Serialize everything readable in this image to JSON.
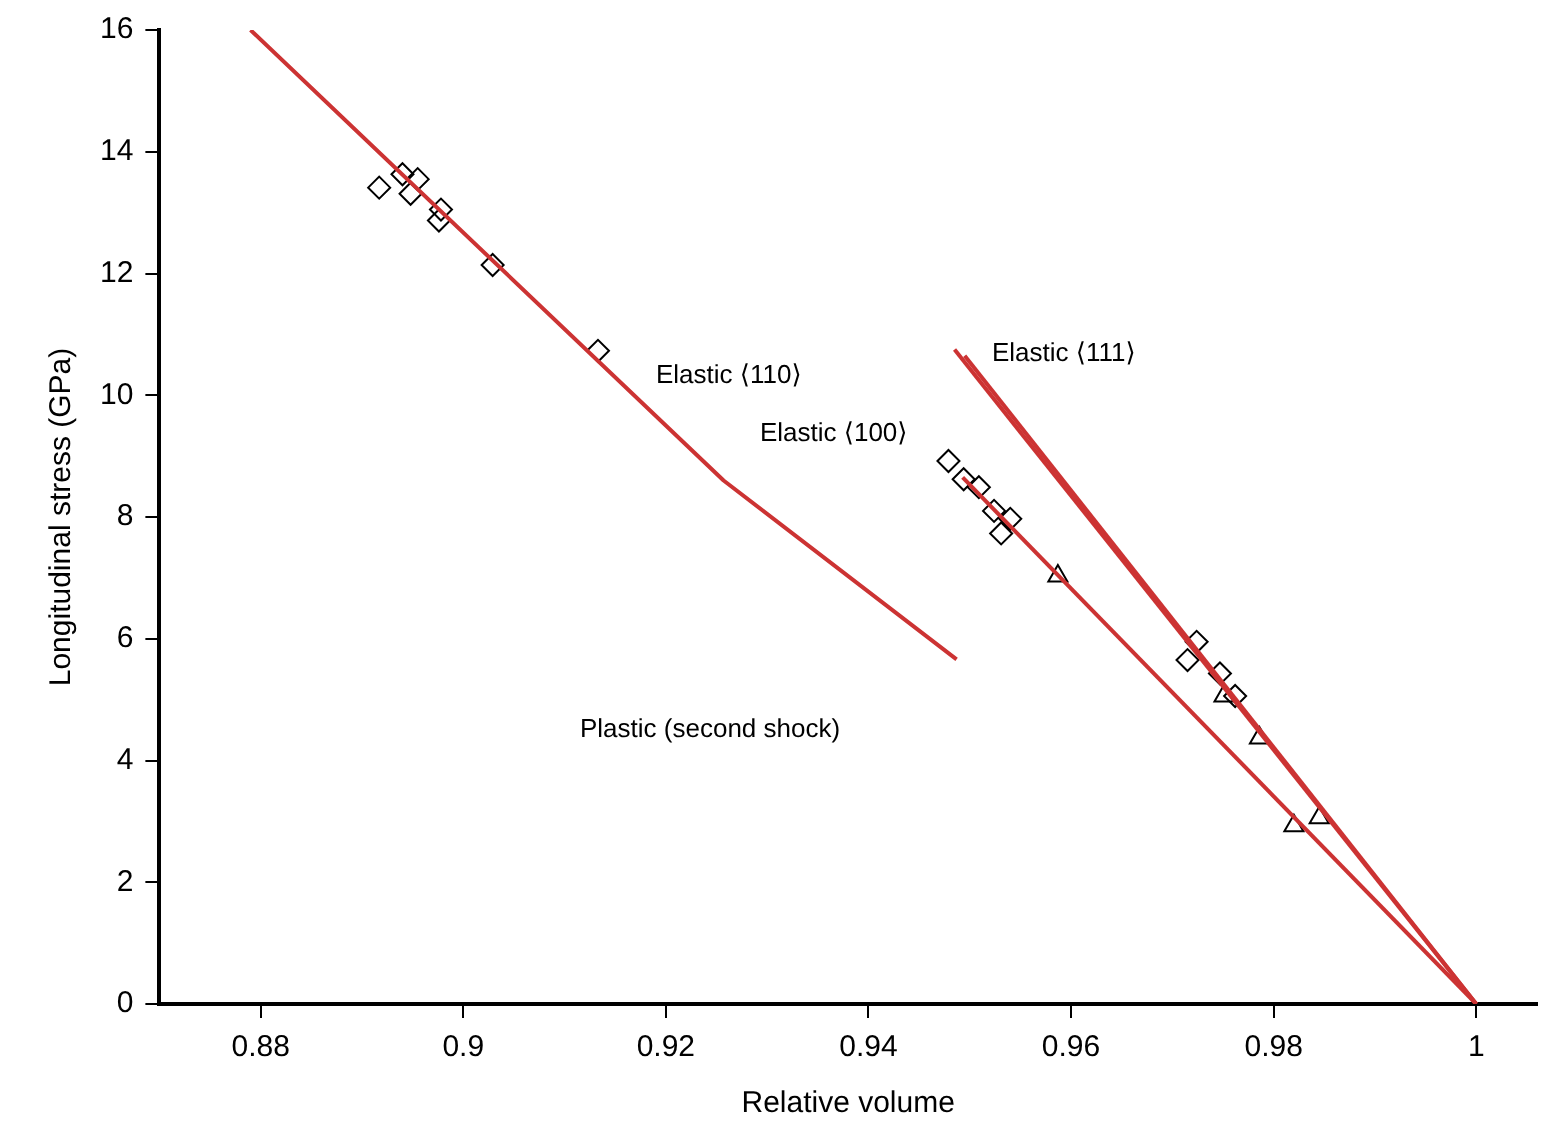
{
  "chart_data": {
    "type": "line",
    "xlabel": "Relative volume",
    "ylabel": "Longitudinal stress (GPa)",
    "xlim": [
      0.87,
      1.006
    ],
    "xticks": [
      0.88,
      0.9,
      0.92,
      0.94,
      0.96,
      0.98,
      1
    ],
    "ylim": [
      0,
      16
    ],
    "yticks": [
      0,
      2,
      4,
      6,
      8,
      10,
      12,
      14,
      16
    ],
    "grid": false,
    "legend": false,
    "line_style": "solid",
    "series": [
      {
        "color": "#cc3333",
        "marker": "none",
        "x": [
          0.879,
          0.9257,
          0.9487
        ],
        "values": [
          16,
          8.6,
          5.66
        ]
      },
      {
        "color": "#cc3333",
        "marker": "none",
        "x": [
          0.9485,
          1
        ],
        "values": [
          10.75,
          0
        ]
      },
      {
        "color": "#cc3333",
        "marker": "none",
        "x": [
          0.9495,
          1
        ],
        "values": [
          10.65,
          0
        ]
      },
      {
        "color": "#cc3333",
        "marker": "none",
        "x": [
          0.9493,
          1
        ],
        "values": [
          8.65,
          0
        ]
      },
      {
        "type": "scatter",
        "color": "#000000",
        "marker": "diamond",
        "x": [
          0.8917,
          0.894,
          0.8955,
          0.8948,
          0.8978,
          0.8976,
          0.9029,
          0.9133,
          0.9479,
          0.9494,
          0.9509,
          0.9524,
          0.954,
          0.9531,
          0.9724,
          0.9715,
          0.9747,
          0.9762
        ],
        "values": [
          13.41,
          13.63,
          13.55,
          13.31,
          13.05,
          12.87,
          12.14,
          10.73,
          8.92,
          8.62,
          8.49,
          8.1,
          7.97,
          7.73,
          5.95,
          5.65,
          5.43,
          5.06
        ]
      },
      {
        "type": "scatter",
        "color": "#000000",
        "marker": "triangle",
        "x": [
          0.9587,
          0.9751,
          0.9786,
          0.982,
          0.9845
        ],
        "values": [
          7.03,
          5.06,
          4.37,
          2.93,
          3.06
        ]
      }
    ],
    "annotations": [
      "Elastic ⟨110⟩",
      "Elastic ⟨100⟩",
      "Elastic ⟨111⟩",
      "Plastic (second shock)"
    ]
  }
}
